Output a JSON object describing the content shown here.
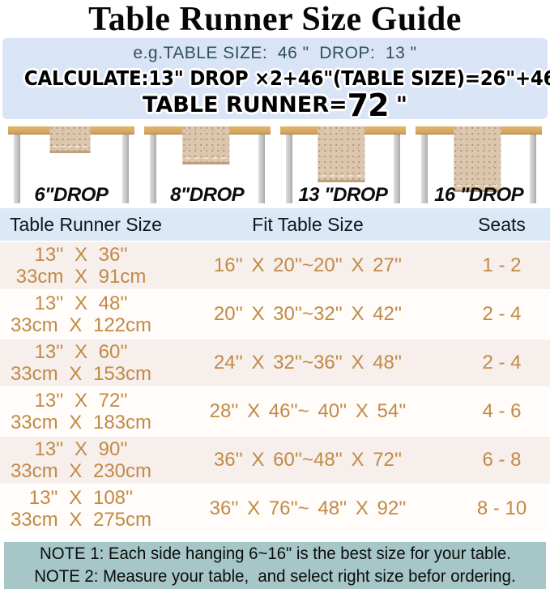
{
  "title": "Table Runner Size Guide",
  "colors": {
    "panel_blue": "#d9e5f6",
    "header_blue": "#dbe9f7",
    "row_pink": "#f6efeb",
    "row_white": "#fffcf9",
    "accent_orange": "#c18a47",
    "note_teal": "#a6c6c7",
    "tabletop_tan": "#d8a75f"
  },
  "calc_panel": {
    "example_line": "e.g.TABLE SIZE:  46 \"  DROP:  13 \"",
    "line1": "CALCULATE:13\" DROP ×2+46\"(TABLE SIZE)=26\"+46\"",
    "line2_prefix": "TABLE RUNNER=",
    "line2_value": "72",
    "line2_suffix": " \""
  },
  "illustrations": [
    {
      "label": "6\"DROP"
    },
    {
      "label": "8\"DROP"
    },
    {
      "label": "13 \"DROP"
    },
    {
      "label": "16 \"DROP"
    }
  ],
  "size_table": {
    "headers": {
      "runner": "Table Runner Size",
      "fit": "Fit Table Size",
      "seats": "Seats"
    },
    "rows": [
      {
        "size_in": "13'' X 36''",
        "size_cm": "33cm X 91cm",
        "fit": "16'' X 20''~20'' X 27''",
        "seats": "1 - 2"
      },
      {
        "size_in": "13'' X 48''",
        "size_cm": "33cm X 122cm",
        "fit": "20'' X 30''~32'' X 42''",
        "seats": "2 - 4"
      },
      {
        "size_in": "13'' X 60''",
        "size_cm": "33cm X 153cm",
        "fit": "24'' X 32''~36'' X 48''",
        "seats": "2 - 4"
      },
      {
        "size_in": "13'' X 72''",
        "size_cm": "33cm X 183cm",
        "fit": "28'' X 46''~ 40'' X 54''",
        "seats": "4 - 6"
      },
      {
        "size_in": "13'' X 90''",
        "size_cm": "33cm X 230cm",
        "fit": "36'' X 60''~48'' X 72''",
        "seats": "6 - 8"
      },
      {
        "size_in": "13'' X 108''",
        "size_cm": "33cm X 275cm",
        "fit": "36'' X 76''~ 48'' X 92''",
        "seats": "8 - 10"
      }
    ]
  },
  "notes": {
    "note1": "NOTE 1: Each side hanging 6~16\" is the best size for your table.",
    "note2": "NOTE 2: Measure your table,  and select right size befor ordering."
  }
}
